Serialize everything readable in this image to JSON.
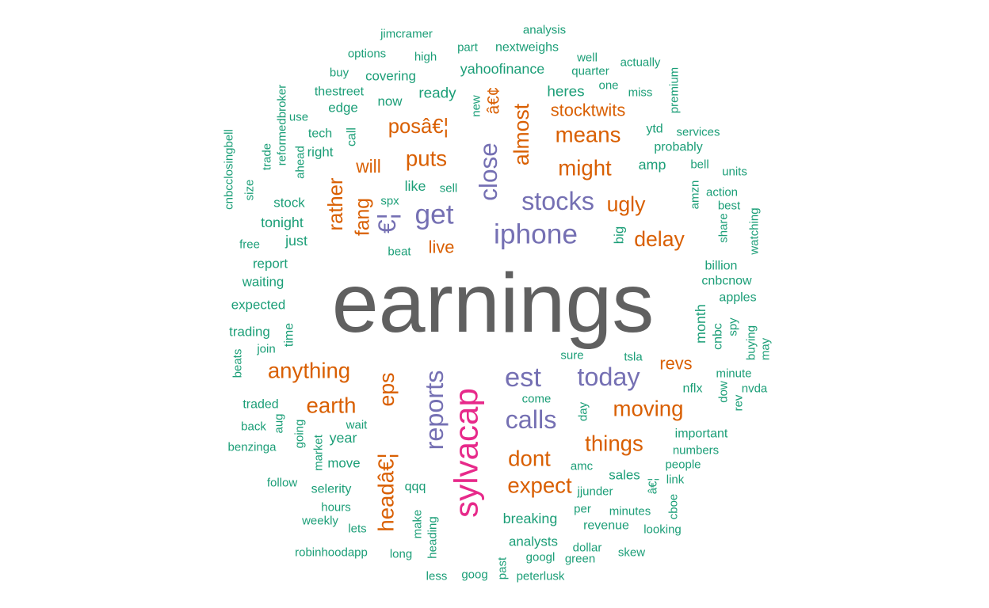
{
  "chart_data": {
    "type": "wordcloud",
    "title": "",
    "color_groups": {
      "top": "#606060",
      "high": "#e7298a",
      "mid": "#7570b3",
      "low": "#d95f02",
      "base": "#1b9e77"
    },
    "words": [
      {
        "text": "earnings",
        "group": "top",
        "freq": 100,
        "rotate": false
      },
      {
        "text": "sylvacap",
        "group": "high",
        "freq": 34,
        "rotate": true
      },
      {
        "text": "iphone",
        "group": "mid",
        "freq": 27,
        "rotate": false
      },
      {
        "text": "get",
        "group": "mid",
        "freq": 27,
        "rotate": false
      },
      {
        "text": "stocks",
        "group": "mid",
        "freq": 24,
        "rotate": false
      },
      {
        "text": "est",
        "group": "mid",
        "freq": 26,
        "rotate": false
      },
      {
        "text": "calls",
        "group": "mid",
        "freq": 24,
        "rotate": false
      },
      {
        "text": "today",
        "group": "mid",
        "freq": 24,
        "rotate": false
      },
      {
        "text": "reports",
        "group": "mid",
        "freq": 24,
        "rotate": true
      },
      {
        "text": "close",
        "group": "mid",
        "freq": 23,
        "rotate": true
      },
      {
        "text": "€¦",
        "group": "mid",
        "freq": 23,
        "rotate": true
      },
      {
        "text": "posâ€¦",
        "group": "low",
        "freq": 17,
        "rotate": false
      },
      {
        "text": "puts",
        "group": "low",
        "freq": 19,
        "rotate": false
      },
      {
        "text": "means",
        "group": "low",
        "freq": 19,
        "rotate": false
      },
      {
        "text": "might",
        "group": "low",
        "freq": 19,
        "rotate": false
      },
      {
        "text": "ugly",
        "group": "low",
        "freq": 18,
        "rotate": false
      },
      {
        "text": "delay",
        "group": "low",
        "freq": 18,
        "rotate": false
      },
      {
        "text": "almost",
        "group": "low",
        "freq": 18,
        "rotate": true
      },
      {
        "text": "rather",
        "group": "low",
        "freq": 17,
        "rotate": true
      },
      {
        "text": "fang",
        "group": "low",
        "freq": 16,
        "rotate": true
      },
      {
        "text": "anything",
        "group": "low",
        "freq": 19,
        "rotate": false
      },
      {
        "text": "earth",
        "group": "low",
        "freq": 19,
        "rotate": false
      },
      {
        "text": "eps",
        "group": "low",
        "freq": 18,
        "rotate": true
      },
      {
        "text": "headâ€¦",
        "group": "low",
        "freq": 19,
        "rotate": true
      },
      {
        "text": "moving",
        "group": "low",
        "freq": 19,
        "rotate": false
      },
      {
        "text": "things",
        "group": "low",
        "freq": 19,
        "rotate": false
      },
      {
        "text": "dont",
        "group": "low",
        "freq": 19,
        "rotate": false
      },
      {
        "text": "expect",
        "group": "low",
        "freq": 19,
        "rotate": false
      },
      {
        "text": "will",
        "group": "low",
        "freq": 14,
        "rotate": false
      },
      {
        "text": "live",
        "group": "low",
        "freq": 13,
        "rotate": false
      },
      {
        "text": "revs",
        "group": "low",
        "freq": 13,
        "rotate": false
      },
      {
        "text": "stocktwits",
        "group": "low",
        "freq": 13,
        "rotate": false
      },
      {
        "text": "â€¢",
        "group": "low",
        "freq": 12,
        "rotate": true
      },
      {
        "text": "jimcramer",
        "group": "base",
        "freq": 6,
        "rotate": false
      },
      {
        "text": "analysis",
        "group": "base",
        "freq": 6,
        "rotate": false
      },
      {
        "text": "part",
        "group": "base",
        "freq": 6,
        "rotate": false
      },
      {
        "text": "nextweighs",
        "group": "base",
        "freq": 7,
        "rotate": false
      },
      {
        "text": "options",
        "group": "base",
        "freq": 6,
        "rotate": false
      },
      {
        "text": "high",
        "group": "base",
        "freq": 6,
        "rotate": false
      },
      {
        "text": "well",
        "group": "base",
        "freq": 6,
        "rotate": false
      },
      {
        "text": "actually",
        "group": "base",
        "freq": 6,
        "rotate": false
      },
      {
        "text": "premium",
        "group": "base",
        "freq": 6,
        "rotate": true
      },
      {
        "text": "buy",
        "group": "base",
        "freq": 6,
        "rotate": false
      },
      {
        "text": "yahoofinance",
        "group": "base",
        "freq": 9,
        "rotate": false
      },
      {
        "text": "quarter",
        "group": "base",
        "freq": 6,
        "rotate": false
      },
      {
        "text": "covering",
        "group": "base",
        "freq": 8,
        "rotate": false
      },
      {
        "text": "reformedbroker",
        "group": "base",
        "freq": 6,
        "rotate": true
      },
      {
        "text": "thestreet",
        "group": "base",
        "freq": 7,
        "rotate": false
      },
      {
        "text": "ready",
        "group": "base",
        "freq": 10,
        "rotate": false
      },
      {
        "text": "heres",
        "group": "base",
        "freq": 10,
        "rotate": false
      },
      {
        "text": "one",
        "group": "base",
        "freq": 6,
        "rotate": false
      },
      {
        "text": "miss",
        "group": "base",
        "freq": 6,
        "rotate": false
      },
      {
        "text": "now",
        "group": "base",
        "freq": 8,
        "rotate": false
      },
      {
        "text": "new",
        "group": "base",
        "freq": 6,
        "rotate": true
      },
      {
        "text": "edge",
        "group": "base",
        "freq": 8,
        "rotate": false
      },
      {
        "text": "use",
        "group": "base",
        "freq": 6,
        "rotate": false
      },
      {
        "text": "cnbcclosingbell",
        "group": "base",
        "freq": 6,
        "rotate": true
      },
      {
        "text": "tech",
        "group": "base",
        "freq": 7,
        "rotate": false
      },
      {
        "text": "call",
        "group": "base",
        "freq": 7,
        "rotate": true
      },
      {
        "text": "ytd",
        "group": "base",
        "freq": 7,
        "rotate": false
      },
      {
        "text": "services",
        "group": "base",
        "freq": 6,
        "rotate": false
      },
      {
        "text": "right",
        "group": "base",
        "freq": 8,
        "rotate": false
      },
      {
        "text": "ahead",
        "group": "base",
        "freq": 6,
        "rotate": true
      },
      {
        "text": "trade",
        "group": "base",
        "freq": 6,
        "rotate": true
      },
      {
        "text": "probably",
        "group": "base",
        "freq": 7,
        "rotate": false
      },
      {
        "text": "amp",
        "group": "base",
        "freq": 9,
        "rotate": false
      },
      {
        "text": "bell",
        "group": "base",
        "freq": 6,
        "rotate": false
      },
      {
        "text": "units",
        "group": "base",
        "freq": 6,
        "rotate": false
      },
      {
        "text": "size",
        "group": "base",
        "freq": 6,
        "rotate": true
      },
      {
        "text": "like",
        "group": "base",
        "freq": 9,
        "rotate": false
      },
      {
        "text": "sell",
        "group": "base",
        "freq": 6,
        "rotate": false
      },
      {
        "text": "stock",
        "group": "base",
        "freq": 8,
        "rotate": false
      },
      {
        "text": "spx",
        "group": "base",
        "freq": 6,
        "rotate": false
      },
      {
        "text": "amzn",
        "group": "base",
        "freq": 6,
        "rotate": true
      },
      {
        "text": "action",
        "group": "base",
        "freq": 6,
        "rotate": false
      },
      {
        "text": "best",
        "group": "base",
        "freq": 6,
        "rotate": false
      },
      {
        "text": "tonight",
        "group": "base",
        "freq": 9,
        "rotate": false
      },
      {
        "text": "watching",
        "group": "base",
        "freq": 6,
        "rotate": true
      },
      {
        "text": "big",
        "group": "base",
        "freq": 8,
        "rotate": true
      },
      {
        "text": "share",
        "group": "base",
        "freq": 6,
        "rotate": true
      },
      {
        "text": "free",
        "group": "base",
        "freq": 6,
        "rotate": false
      },
      {
        "text": "just",
        "group": "base",
        "freq": 9,
        "rotate": false
      },
      {
        "text": "beat",
        "group": "base",
        "freq": 6,
        "rotate": false
      },
      {
        "text": "billion",
        "group": "base",
        "freq": 7,
        "rotate": false
      },
      {
        "text": "report",
        "group": "base",
        "freq": 8,
        "rotate": false
      },
      {
        "text": "cnbcnow",
        "group": "base",
        "freq": 7,
        "rotate": false
      },
      {
        "text": "waiting",
        "group": "base",
        "freq": 8,
        "rotate": false
      },
      {
        "text": "month",
        "group": "base",
        "freq": 9,
        "rotate": true
      },
      {
        "text": "apples",
        "group": "base",
        "freq": 7,
        "rotate": false
      },
      {
        "text": "expected",
        "group": "base",
        "freq": 8,
        "rotate": false
      },
      {
        "text": "time",
        "group": "base",
        "freq": 7,
        "rotate": true
      },
      {
        "text": "trading",
        "group": "base",
        "freq": 8,
        "rotate": false
      },
      {
        "text": "spy",
        "group": "base",
        "freq": 6,
        "rotate": true
      },
      {
        "text": "buying",
        "group": "base",
        "freq": 6,
        "rotate": true
      },
      {
        "text": "cnbc",
        "group": "base",
        "freq": 7,
        "rotate": true
      },
      {
        "text": "join",
        "group": "base",
        "freq": 6,
        "rotate": false
      },
      {
        "text": "may",
        "group": "base",
        "freq": 6,
        "rotate": true
      },
      {
        "text": "sure",
        "group": "base",
        "freq": 6,
        "rotate": false
      },
      {
        "text": "tsla",
        "group": "base",
        "freq": 6,
        "rotate": false
      },
      {
        "text": "beats",
        "group": "base",
        "freq": 6,
        "rotate": true
      },
      {
        "text": "minute",
        "group": "base",
        "freq": 6,
        "rotate": false
      },
      {
        "text": "nflx",
        "group": "base",
        "freq": 7,
        "rotate": false
      },
      {
        "text": "dow",
        "group": "base",
        "freq": 6,
        "rotate": true
      },
      {
        "text": "nvda",
        "group": "base",
        "freq": 6,
        "rotate": false
      },
      {
        "text": "rev",
        "group": "base",
        "freq": 6,
        "rotate": true
      },
      {
        "text": "come",
        "group": "base",
        "freq": 6,
        "rotate": false
      },
      {
        "text": "traded",
        "group": "base",
        "freq": 7,
        "rotate": false
      },
      {
        "text": "aug",
        "group": "base",
        "freq": 6,
        "rotate": true
      },
      {
        "text": "day",
        "group": "base",
        "freq": 6,
        "rotate": true
      },
      {
        "text": "back",
        "group": "base",
        "freq": 6,
        "rotate": false
      },
      {
        "text": "wait",
        "group": "base",
        "freq": 6,
        "rotate": false
      },
      {
        "text": "going",
        "group": "base",
        "freq": 6,
        "rotate": true
      },
      {
        "text": "year",
        "group": "base",
        "freq": 9,
        "rotate": false
      },
      {
        "text": "important",
        "group": "base",
        "freq": 7,
        "rotate": false
      },
      {
        "text": "benzinga",
        "group": "base",
        "freq": 6,
        "rotate": false
      },
      {
        "text": "numbers",
        "group": "base",
        "freq": 6,
        "rotate": false
      },
      {
        "text": "market",
        "group": "base",
        "freq": 6,
        "rotate": true
      },
      {
        "text": "move",
        "group": "base",
        "freq": 8,
        "rotate": false
      },
      {
        "text": "amc",
        "group": "base",
        "freq": 6,
        "rotate": false
      },
      {
        "text": "people",
        "group": "base",
        "freq": 6,
        "rotate": false
      },
      {
        "text": "sales",
        "group": "base",
        "freq": 8,
        "rotate": false
      },
      {
        "text": "follow",
        "group": "base",
        "freq": 6,
        "rotate": false
      },
      {
        "text": "â€¦",
        "group": "base",
        "freq": 6,
        "rotate": true
      },
      {
        "text": "link",
        "group": "base",
        "freq": 6,
        "rotate": false
      },
      {
        "text": "qqq",
        "group": "base",
        "freq": 7,
        "rotate": false
      },
      {
        "text": "jjunder",
        "group": "base",
        "freq": 6,
        "rotate": false
      },
      {
        "text": "selerity",
        "group": "base",
        "freq": 7,
        "rotate": false
      },
      {
        "text": "hours",
        "group": "base",
        "freq": 6,
        "rotate": false
      },
      {
        "text": "per",
        "group": "base",
        "freq": 6,
        "rotate": false
      },
      {
        "text": "minutes",
        "group": "base",
        "freq": 6,
        "rotate": false
      },
      {
        "text": "cboe",
        "group": "base",
        "freq": 6,
        "rotate": true
      },
      {
        "text": "make",
        "group": "base",
        "freq": 6,
        "rotate": true
      },
      {
        "text": "breaking",
        "group": "base",
        "freq": 9,
        "rotate": false
      },
      {
        "text": "weekly",
        "group": "base",
        "freq": 6,
        "rotate": false
      },
      {
        "text": "lets",
        "group": "base",
        "freq": 6,
        "rotate": false
      },
      {
        "text": "revenue",
        "group": "base",
        "freq": 7,
        "rotate": false
      },
      {
        "text": "looking",
        "group": "base",
        "freq": 6,
        "rotate": false
      },
      {
        "text": "heading",
        "group": "base",
        "freq": 6,
        "rotate": true
      },
      {
        "text": "analysts",
        "group": "base",
        "freq": 8,
        "rotate": false
      },
      {
        "text": "robinhoodapp",
        "group": "base",
        "freq": 6,
        "rotate": false
      },
      {
        "text": "long",
        "group": "base",
        "freq": 6,
        "rotate": false
      },
      {
        "text": "dollar",
        "group": "base",
        "freq": 6,
        "rotate": false
      },
      {
        "text": "skew",
        "group": "base",
        "freq": 6,
        "rotate": false
      },
      {
        "text": "googl",
        "group": "base",
        "freq": 6,
        "rotate": false
      },
      {
        "text": "green",
        "group": "base",
        "freq": 6,
        "rotate": false
      },
      {
        "text": "past",
        "group": "base",
        "freq": 6,
        "rotate": true
      },
      {
        "text": "less",
        "group": "base",
        "freq": 6,
        "rotate": false
      },
      {
        "text": "goog",
        "group": "base",
        "freq": 6,
        "rotate": false
      },
      {
        "text": "peterlusk",
        "group": "base",
        "freq": 6,
        "rotate": false
      }
    ]
  }
}
